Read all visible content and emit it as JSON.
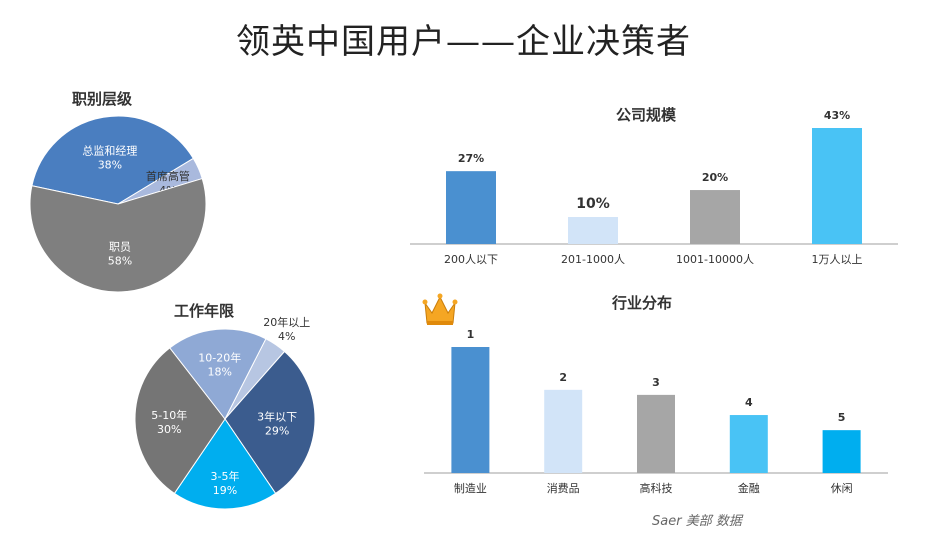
{
  "page": {
    "title": "领英中国用户——企业决策者"
  },
  "chart_data": [
    {
      "id": "job-level",
      "type": "pie",
      "title": "职别层级",
      "slices": [
        {
          "label": "总监和经理",
          "value": 38,
          "value_label": "38%",
          "color": "#4A7EC0"
        },
        {
          "label": "首席高管",
          "value": 4,
          "value_label": "4%",
          "color": "#A9B9DD"
        },
        {
          "label": "职员",
          "value": 58,
          "value_label": "58%",
          "color": "#7F7F7F"
        }
      ]
    },
    {
      "id": "work-years",
      "type": "pie",
      "title": "工作年限",
      "slices": [
        {
          "label": "20年以上",
          "value": 4,
          "value_label": "4%",
          "color": "#B7C6E2"
        },
        {
          "label": "3年以下",
          "value": 29,
          "value_label": "29%",
          "color": "#3B5C8E"
        },
        {
          "label": "3-5年",
          "value": 19,
          "value_label": "19%",
          "color": "#00AEEF"
        },
        {
          "label": "5-10年",
          "value": 30,
          "value_label": "30%",
          "color": "#757575"
        },
        {
          "label": "10-20年",
          "value": 18,
          "value_label": "18%",
          "color": "#8FA9D5"
        }
      ]
    },
    {
      "id": "company-size",
      "type": "bar",
      "title": "公司规模",
      "categories": [
        "200人以下",
        "201-1000人",
        "1001-10000人",
        "1万人以上"
      ],
      "values": [
        27,
        10,
        20,
        43
      ],
      "value_labels": [
        "27%",
        "10%",
        "20%",
        "43%"
      ],
      "colors": [
        "#4A90D0",
        "#D2E4F8",
        "#A6A6A6",
        "#49C3F5"
      ],
      "ylim": [
        0,
        43
      ]
    },
    {
      "id": "industry",
      "type": "bar",
      "title": "行业分布",
      "categories": [
        "制造业",
        "消费品",
        "高科技",
        "金融",
        "休闲"
      ],
      "values": [
        5,
        3.3,
        3.1,
        2.3,
        1.7
      ],
      "value_labels": [
        "1",
        "2",
        "3",
        "4",
        "5"
      ],
      "colors": [
        "#4A90D0",
        "#D2E4F8",
        "#A6A6A6",
        "#49C3F5",
        "#00AEEF"
      ],
      "ylim": [
        0,
        5
      ],
      "icon": "crown-icon"
    }
  ],
  "footer": {
    "source": "Saer 美部 数据"
  }
}
